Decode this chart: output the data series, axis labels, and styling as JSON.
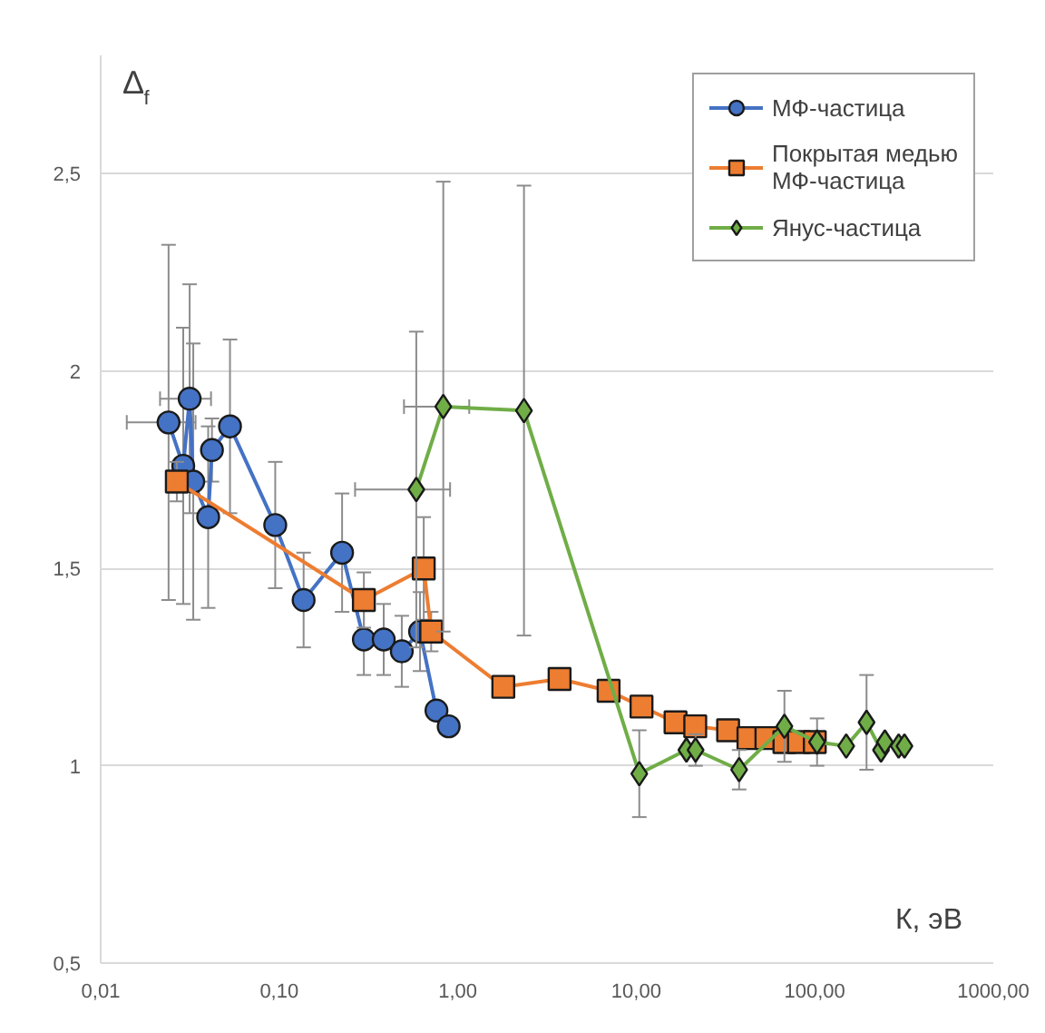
{
  "chart_data": {
    "type": "line",
    "xlabel": "К, эВ",
    "ylabel": "Δ$_{f}$",
    "log": "x",
    "grid": "y",
    "legend": "top right",
    "xlim": [
      0.01,
      1000
    ],
    "ylim": [
      0.5,
      2.8
    ],
    "xticks": [
      {
        "value": 0.01,
        "label": "0,01"
      },
      {
        "value": 0.1,
        "label": "0,10"
      },
      {
        "value": 1,
        "label": "1,00"
      },
      {
        "value": 10,
        "label": "10,00"
      },
      {
        "value": 100,
        "label": "100,00"
      },
      {
        "value": 1000,
        "label": "1000,00"
      }
    ],
    "yticks": [
      {
        "value": 0.5,
        "label": "0,5"
      },
      {
        "value": 1,
        "label": "1"
      },
      {
        "value": 1.5,
        "label": "1,5"
      },
      {
        "value": 2,
        "label": "2"
      },
      {
        "value": 2.5,
        "label": "2,5"
      }
    ],
    "series": [
      {
        "name": "МФ-частица",
        "color": "#4472c4",
        "marker": "circle",
        "x": [
          0.024,
          0.029,
          0.0315,
          0.033,
          0.04,
          0.042,
          0.053,
          0.095,
          0.137,
          0.225,
          0.298,
          0.385,
          0.486,
          0.615,
          0.76,
          0.89
        ],
        "values": [
          1.87,
          1.76,
          1.93,
          1.72,
          1.63,
          1.8,
          1.86,
          1.61,
          1.42,
          1.54,
          1.32,
          1.32,
          1.29,
          1.34,
          1.14,
          1.1
        ],
        "errors": [
          0.45,
          0.35,
          0.29,
          0.35,
          0.23,
          0.08,
          0.22,
          0.16,
          0.12,
          0.15,
          0.09,
          0.09,
          0.09,
          0.1,
          null,
          null
        ],
        "xerrors": [
          0.01,
          null,
          0.01,
          null,
          null,
          null,
          null,
          null,
          null,
          null,
          null,
          null,
          null,
          null,
          null,
          null
        ]
      },
      {
        "name": "Покрытая медью МФ-частица",
        "color": "#ed7d31",
        "marker": "square",
        "x": [
          0.0267,
          0.298,
          0.645,
          0.71,
          1.8,
          3.72,
          7.0,
          10.7,
          16.6,
          21.4,
          32.7,
          42.5,
          53.6,
          67.6,
          81.5,
          100
        ],
        "values": [
          1.72,
          1.42,
          1.5,
          1.34,
          1.2,
          1.22,
          1.19,
          1.15,
          1.11,
          1.1,
          1.09,
          1.07,
          1.07,
          1.06,
          1.06,
          1.06
        ],
        "errors": [
          0.05,
          0.07,
          0.13,
          0.05,
          null,
          null,
          null,
          null,
          null,
          null,
          null,
          null,
          null,
          null,
          null,
          null
        ]
      },
      {
        "name": "Янус-частица",
        "color": "#70ad47",
        "marker": "diamond",
        "x": [
          0.586,
          0.83,
          2.35,
          10.4,
          19.1,
          21.5,
          37.7,
          67.6,
          103,
          150,
          195,
          235,
          247,
          295,
          318
        ],
        "values": [
          1.7,
          1.91,
          1.9,
          0.98,
          1.04,
          1.04,
          0.99,
          1.1,
          1.06,
          1.05,
          1.11,
          1.04,
          1.06,
          1.05,
          1.05
        ],
        "errors": [
          0.4,
          0.57,
          0.57,
          0.11,
          null,
          0.04,
          0.05,
          0.09,
          0.06,
          null,
          0.12,
          null,
          null,
          null,
          null
        ],
        "xerrors": [
          0.32,
          0.33,
          null,
          null,
          null,
          null,
          null,
          null,
          null,
          null,
          null,
          null,
          null,
          null,
          null
        ]
      }
    ]
  }
}
